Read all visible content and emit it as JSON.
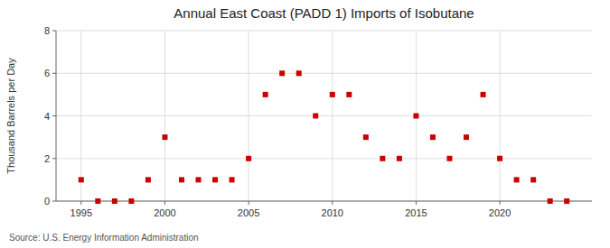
{
  "chart_data": {
    "type": "scatter",
    "title": "Annual East Coast (PADD 1) Imports of Isobutane",
    "y_label": "Thousand Barrels per Day",
    "annotation": "Source: U.S. Energy Information Administration",
    "x": [
      1995,
      1996,
      1997,
      1998,
      1999,
      2000,
      2001,
      2002,
      2003,
      2004,
      2005,
      2006,
      2007,
      2008,
      2009,
      2010,
      2011,
      2012,
      2013,
      2014,
      2015,
      2016,
      2017,
      2018,
      2019,
      2020,
      2021,
      2022,
      2023,
      2024
    ],
    "values": [
      1,
      0,
      0,
      0,
      1,
      3,
      1,
      1,
      1,
      1,
      2,
      5,
      6,
      6,
      4,
      5,
      5,
      3,
      2,
      2,
      4,
      3,
      2,
      3,
      5,
      2,
      1,
      1,
      0,
      0
    ],
    "color": "#cc0000",
    "marker": "square",
    "xlim": [
      1993.5,
      2025.5
    ],
    "xticks": [
      1995,
      2000,
      2005,
      2010,
      2015,
      2020
    ],
    "ylim": [
      0,
      8
    ],
    "yticks": [
      0,
      2,
      4,
      6,
      8
    ],
    "grid": true
  }
}
